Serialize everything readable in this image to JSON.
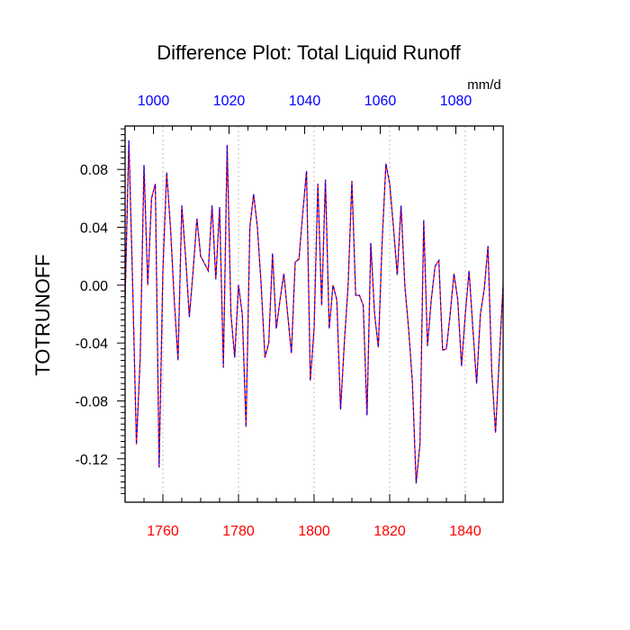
{
  "chart_data": {
    "type": "line",
    "title": "Difference Plot: Total Liquid Runoff",
    "units": "mm/d",
    "ylabel": "TOTRUNOFF",
    "ylim": [
      -0.15,
      0.11
    ],
    "yticks": [
      0.08,
      0.04,
      0.0,
      -0.04,
      -0.08,
      -0.12
    ],
    "ytick_labels": [
      "0.08",
      "0.04",
      "0.00",
      "-0.04",
      "-0.08",
      "-0.12"
    ],
    "x_bottom": {
      "range": [
        1750,
        1850
      ],
      "ticks": [
        1760,
        1780,
        1800,
        1820,
        1840
      ],
      "tick_labels": [
        "1760",
        "1780",
        "1800",
        "1820",
        "1840"
      ],
      "color": "#ff0000"
    },
    "x_top": {
      "range": [
        992.5,
        1092.5
      ],
      "ticks": [
        1000,
        1020,
        1040,
        1060,
        1080
      ],
      "tick_labels": [
        "1000",
        "1020",
        "1040",
        "1060",
        "1080"
      ],
      "color": "#0000ff"
    },
    "grid": "vertical-dashed",
    "series": [
      {
        "color_primary": "#ff0000",
        "color_secondary": "#0000ff",
        "x": [
          1750,
          1751,
          1752,
          1753,
          1754,
          1755,
          1756,
          1757,
          1758,
          1759,
          1760,
          1761,
          1762,
          1763,
          1764,
          1765,
          1766,
          1767,
          1768,
          1769,
          1770,
          1771,
          1772,
          1773,
          1774,
          1775,
          1776,
          1777,
          1778,
          1779,
          1780,
          1781,
          1782,
          1783,
          1784,
          1785,
          1786,
          1787,
          1788,
          1789,
          1790,
          1791,
          1792,
          1793,
          1794,
          1795,
          1796,
          1797,
          1798,
          1799,
          1800,
          1801,
          1802,
          1803,
          1804,
          1805,
          1806,
          1807,
          1808,
          1809,
          1810,
          1811,
          1812,
          1813,
          1814,
          1815,
          1816,
          1817,
          1818,
          1819,
          1820,
          1821,
          1822,
          1823,
          1824,
          1825,
          1826,
          1827,
          1828,
          1829,
          1830,
          1831,
          1832,
          1833,
          1834,
          1835,
          1836,
          1837,
          1838,
          1839,
          1840,
          1841,
          1842,
          1843,
          1844,
          1845,
          1846,
          1847,
          1848,
          1849,
          1850
        ],
        "values": [
          -0.01,
          0.1,
          0.0,
          -0.11,
          -0.05,
          0.083,
          0.0,
          0.06,
          0.07,
          -0.126,
          0.01,
          0.078,
          0.04,
          -0.01,
          -0.052,
          0.055,
          0.02,
          -0.022,
          0.01,
          0.046,
          0.02,
          0.015,
          0.01,
          0.055,
          0.004,
          0.054,
          -0.057,
          0.097,
          -0.02,
          -0.05,
          0.0,
          -0.02,
          -0.098,
          0.04,
          0.063,
          0.04,
          0.0,
          -0.05,
          -0.04,
          0.022,
          -0.03,
          -0.01,
          0.008,
          -0.02,
          -0.047,
          0.016,
          0.018,
          0.05,
          0.079,
          -0.066,
          -0.03,
          0.07,
          -0.014,
          0.073,
          -0.03,
          0.0,
          -0.01,
          -0.086,
          -0.04,
          0.0,
          0.072,
          -0.007,
          -0.007,
          -0.014,
          -0.09,
          0.029,
          -0.02,
          -0.043,
          0.03,
          0.084,
          0.07,
          0.04,
          0.007,
          0.055,
          0.0,
          -0.03,
          -0.067,
          -0.137,
          -0.11,
          0.045,
          -0.042,
          -0.01,
          0.013,
          0.017,
          -0.045,
          -0.044,
          -0.02,
          0.008,
          -0.01,
          -0.056,
          -0.02,
          0.01,
          -0.03,
          -0.068,
          -0.02,
          -0.003,
          0.027,
          -0.06,
          -0.102,
          -0.05,
          0.0
        ]
      }
    ]
  }
}
